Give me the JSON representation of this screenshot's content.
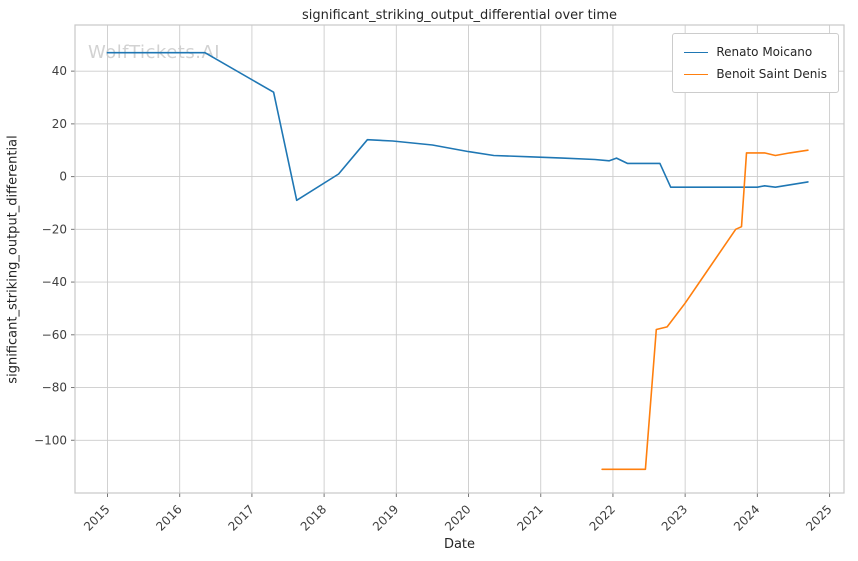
{
  "watermark": "WolfTickets.AI",
  "chart_data": {
    "type": "line",
    "title": "significant_striking_output_differential over time",
    "xlabel": "Date",
    "ylabel": "significant_striking_output_differential",
    "grid": true,
    "legend_position": "upper right",
    "x_range": [
      2014.55,
      2025.2
    ],
    "y_range": [
      -120,
      57.5
    ],
    "xtick_values": [
      2015,
      2016,
      2017,
      2018,
      2019,
      2020,
      2021,
      2022,
      2023,
      2024,
      2025
    ],
    "xtick_labels": [
      "2015",
      "2016",
      "2017",
      "2018",
      "2019",
      "2020",
      "2021",
      "2022",
      "2023",
      "2024",
      "2025"
    ],
    "ytick_values": [
      -100,
      -80,
      -60,
      -40,
      -20,
      0,
      20,
      40
    ],
    "ytick_labels": [
      "−100",
      "−80",
      "−60",
      "−40",
      "−20",
      "0",
      "20",
      "40"
    ],
    "series": [
      {
        "name": "Renato Moicano",
        "color": "#1f77b4",
        "x": [
          2015.0,
          2016.35,
          2017.3,
          2017.62,
          2018.2,
          2018.6,
          2018.95,
          2019.5,
          2020.0,
          2020.35,
          2020.85,
          2021.3,
          2021.75,
          2021.95,
          2022.05,
          2022.2,
          2022.65,
          2022.8,
          2023.0,
          2023.75,
          2024.0,
          2024.1,
          2024.25,
          2024.7
        ],
        "y": [
          47,
          47,
          32,
          -9,
          1,
          14,
          13.5,
          12,
          9.5,
          8,
          7.5,
          7,
          6.5,
          6,
          7,
          5,
          5,
          -4,
          -4,
          -4,
          -4,
          -3.5,
          -4,
          -2
        ]
      },
      {
        "name": "Benoit Saint Denis",
        "color": "#ff7f0e",
        "x": [
          2021.85,
          2022.15,
          2022.45,
          2022.6,
          2022.75,
          2023.0,
          2023.3,
          2023.7,
          2023.78,
          2023.85,
          2024.1,
          2024.25,
          2024.45,
          2024.7
        ],
        "y": [
          -111,
          -111,
          -111,
          -58,
          -57,
          -48,
          -36,
          -20,
          -19,
          9,
          9,
          8,
          9,
          10
        ]
      }
    ]
  },
  "style": {
    "grid_color": "#cccccc",
    "spine_color": "#c8c8c8",
    "tick_color": "#767676",
    "tick_label_color": "#404040"
  }
}
